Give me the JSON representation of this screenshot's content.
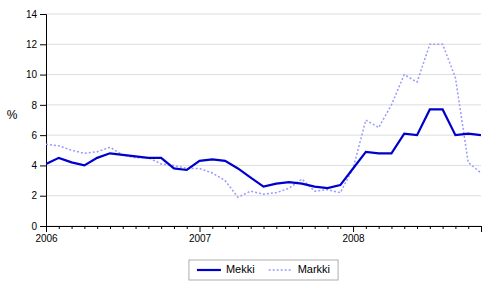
{
  "chart_data": {
    "type": "line",
    "title": "",
    "ylabel": "%",
    "categories": [
      "2006",
      null,
      null,
      null,
      null,
      null,
      null,
      null,
      null,
      null,
      null,
      null,
      "2007",
      null,
      null,
      null,
      null,
      null,
      null,
      null,
      null,
      null,
      null,
      null,
      "2008",
      null,
      null,
      null,
      null,
      null,
      null,
      null,
      null,
      null,
      null
    ],
    "series": [
      {
        "name": "Markki",
        "color": "#9999ff",
        "line_style": "dotted",
        "values": [
          5.4,
          5.3,
          5.0,
          4.8,
          4.9,
          5.2,
          4.7,
          4.5,
          4.5,
          4.1,
          4.0,
          3.8,
          3.8,
          3.5,
          3.0,
          1.9,
          2.3,
          2.1,
          2.2,
          2.5,
          3.1,
          2.3,
          2.4,
          2.2,
          3.8,
          7.0,
          6.5,
          8.0,
          10.0,
          9.5,
          12.0,
          12.0,
          9.8,
          4.2,
          3.5
        ]
      },
      {
        "name": "Mekki",
        "color": "#0000cc",
        "line_style": "solid",
        "values": [
          4.1,
          4.5,
          4.2,
          4.0,
          4.5,
          4.8,
          4.7,
          4.6,
          4.5,
          4.5,
          3.8,
          3.7,
          4.3,
          4.4,
          4.3,
          3.8,
          3.2,
          2.6,
          2.8,
          2.9,
          2.8,
          2.6,
          2.5,
          2.7,
          3.8,
          4.9,
          4.8,
          4.8,
          6.1,
          6.0,
          7.7,
          7.7,
          6.0,
          6.1,
          6.0
        ]
      }
    ],
    "ylim": [
      0,
      14
    ],
    "yticks": [
      0,
      2,
      4,
      6,
      8,
      10,
      12,
      14
    ],
    "grid": true,
    "legend": "bottom"
  }
}
